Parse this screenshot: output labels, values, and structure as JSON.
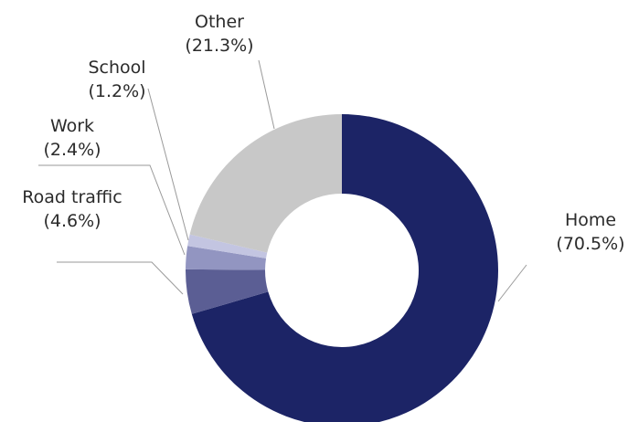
{
  "chart_data": {
    "type": "pie",
    "donut": true,
    "title": "",
    "slices": [
      {
        "name": "Home",
        "value": 70.5,
        "percent_label": "(70.5%)",
        "color": "#1c2466"
      },
      {
        "name": "Road traffic",
        "value": 4.6,
        "percent_label": "(4.6%)",
        "color": "#5b5e94"
      },
      {
        "name": "Work",
        "value": 2.4,
        "percent_label": "(2.4%)",
        "color": "#9295c1"
      },
      {
        "name": "School",
        "value": 1.2,
        "percent_label": "(1.2%)",
        "color": "#c3c5e1"
      },
      {
        "name": "Other",
        "value": 21.3,
        "percent_label": "(21.3%)",
        "color": "#c8c8c8"
      }
    ],
    "start_angle": "12 o'clock",
    "direction": "clockwise",
    "legend": "none",
    "label_style": "outside labels with leader lines"
  }
}
